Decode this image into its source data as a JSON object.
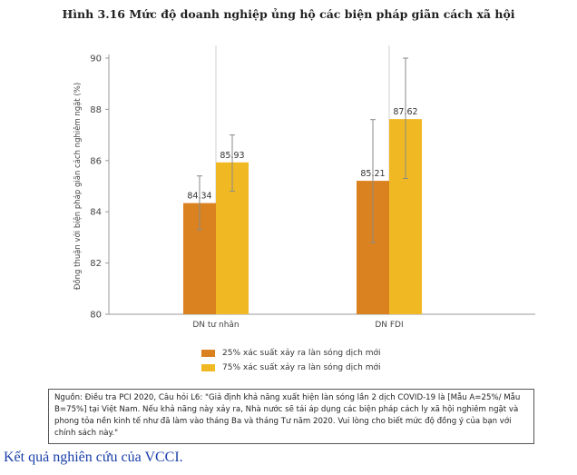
{
  "figure_title": "Hình 3.16 Mức độ doanh nghiệp ủng hộ các biện pháp giãn cách xã hội",
  "chart_data": {
    "type": "bar",
    "categories": [
      "DN tư nhân",
      "DN FDI"
    ],
    "series": [
      {
        "name": "25% xác suất xảy ra làn sóng dịch mới",
        "values": [
          84.34,
          85.21
        ],
        "error_low": [
          83.3,
          82.8
        ],
        "error_high": [
          85.4,
          87.6
        ],
        "color": "#d9821f"
      },
      {
        "name": "75% xác suất xảy ra làn sóng dịch mới",
        "values": [
          85.93,
          87.62
        ],
        "error_low": [
          84.8,
          85.3
        ],
        "error_high": [
          87.0,
          90.0
        ],
        "color": "#f0b923"
      }
    ],
    "data_labels": [
      [
        "84.34",
        "85.21"
      ],
      [
        "85.93",
        "87.62"
      ]
    ],
    "ylabel": "Đồng thuận với biện pháp giãn cách nghiêm ngặt (%)",
    "xlabel": "",
    "ylim": [
      80,
      90
    ],
    "yticks": [
      "80",
      "82",
      "84",
      "86",
      "88",
      "90"
    ],
    "grid": "vertical",
    "legend": "bottom"
  },
  "note": "Nguồn: Điều tra PCI 2020, Câu hỏi L6: \"Giả định khả năng xuất hiện làn sóng lần 2 dịch COVID-19 là [Mẫu A=25%/ Mẫu B=75%] tại Việt Nam. Nếu khả năng này xảy ra, Nhà nước sẽ tái áp dụng các biện pháp cách ly xã hội nghiêm ngặt và phong tỏa nền kinh tế như đã làm vào tháng Ba và tháng Tư năm 2020. Vui lòng cho biết mức độ đồng ý của bạn với chính sách này.\"",
  "caption": "Kết quả nghiên cứu của VCCI."
}
